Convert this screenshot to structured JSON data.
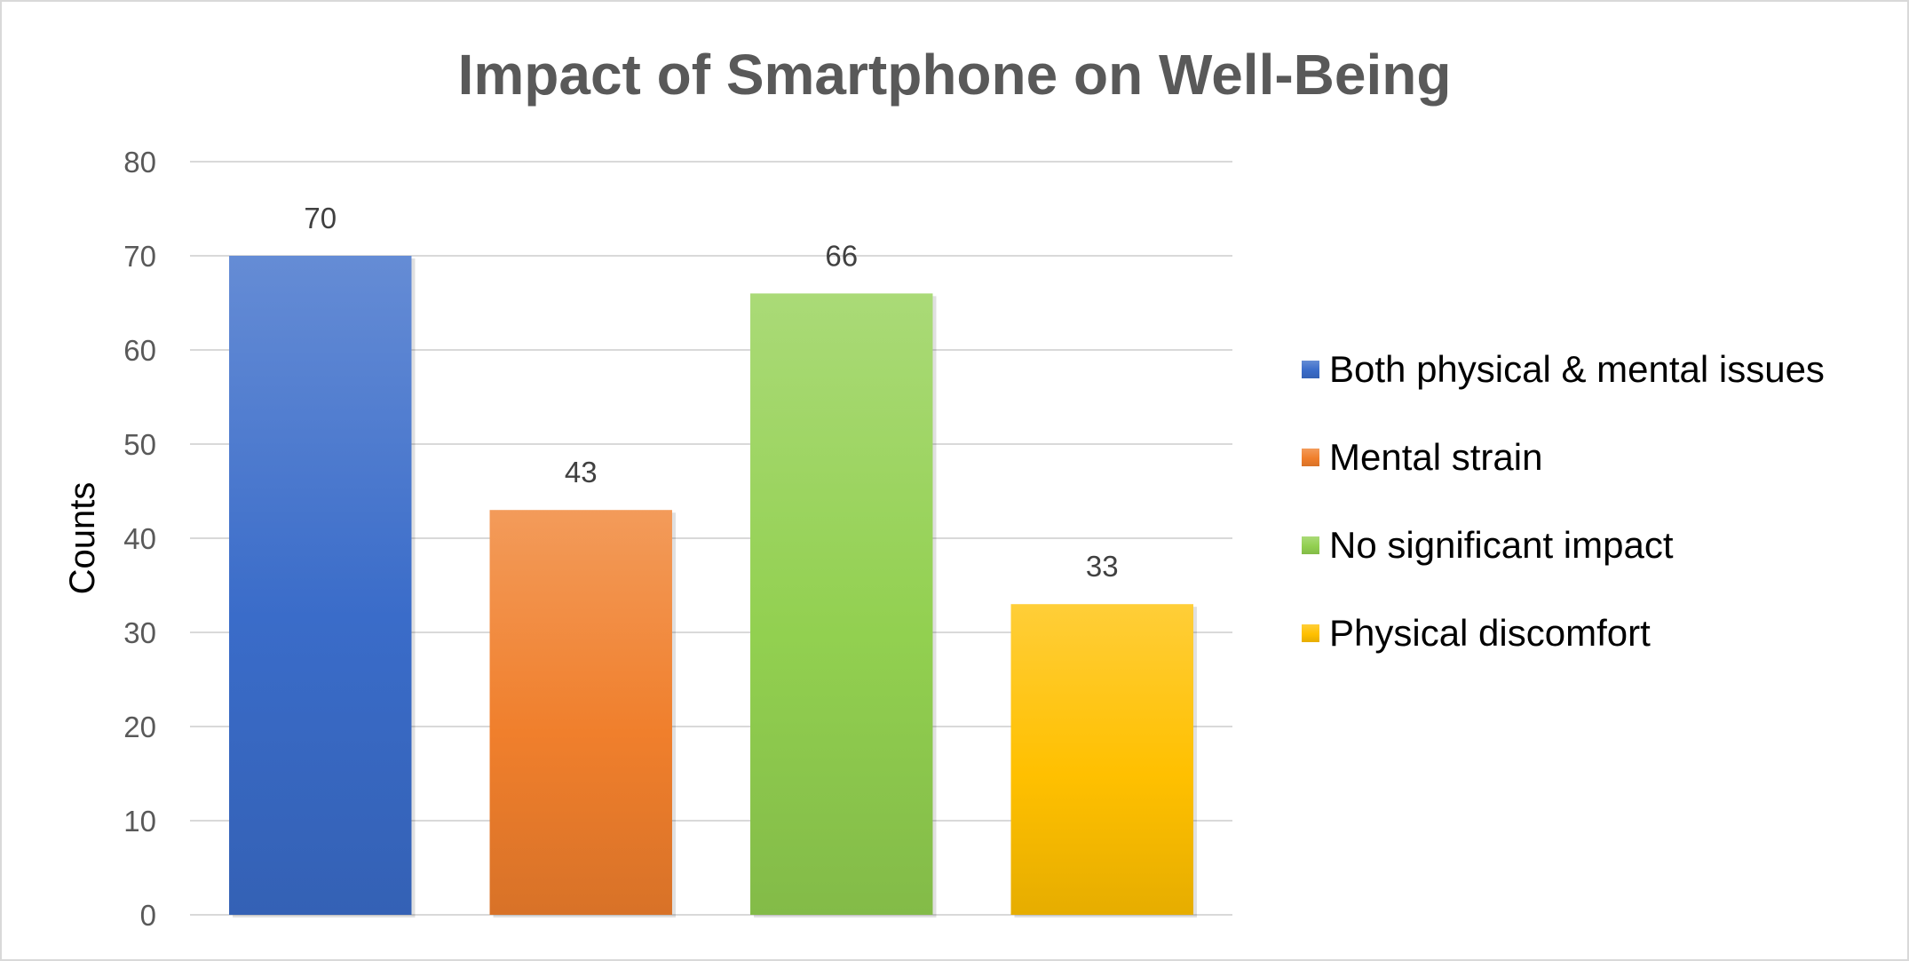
{
  "chart_data": {
    "type": "bar",
    "title": "Impact of Smartphone on Well-Being",
    "ylabel": "Counts",
    "xlabel": "",
    "ylim": [
      0,
      80
    ],
    "yticks": [
      0,
      10,
      20,
      30,
      40,
      50,
      60,
      70,
      80
    ],
    "grid": true,
    "legend_position": "right",
    "categories": [
      "Both physical & mental issues",
      "Mental strain",
      "No significant impact",
      "Physical discomfort"
    ],
    "values": [
      70,
      43,
      66,
      33
    ],
    "colors": [
      "#3a6cc9",
      "#f07f2c",
      "#92d050",
      "#ffc000"
    ]
  }
}
